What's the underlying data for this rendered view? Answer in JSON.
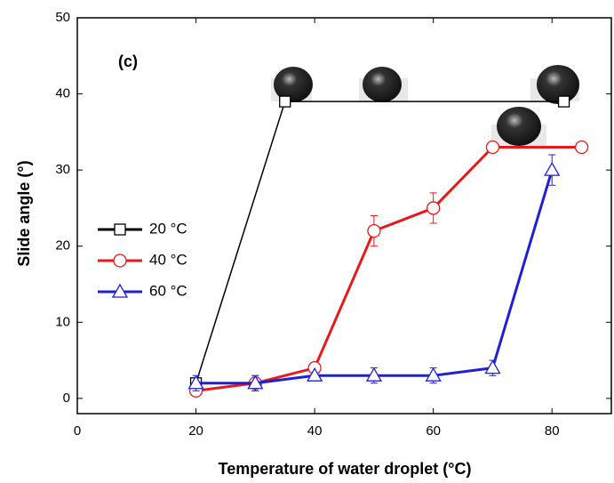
{
  "chart_data": {
    "type": "line",
    "xlabel": "Temperature of water droplet (°C)",
    "ylabel": "Slide angle (°)",
    "annotation": "(c)",
    "xlim": [
      0,
      90
    ],
    "ylim": [
      -2,
      50
    ],
    "xticks": [
      0,
      20,
      40,
      60,
      80
    ],
    "yticks": [
      0,
      10,
      20,
      30,
      40,
      50
    ],
    "series": [
      {
        "name": "20 °C",
        "color": "#000000",
        "marker": "square",
        "x": [
          20,
          35,
          82
        ],
        "values": [
          2,
          39,
          39
        ]
      },
      {
        "name": "40 °C",
        "color": "#e8191b",
        "marker": "circle",
        "x": [
          20,
          30,
          40,
          50,
          60,
          70,
          85
        ],
        "values": [
          1,
          2,
          4,
          22,
          25,
          33,
          33
        ],
        "errors": [
          0,
          1,
          0,
          2,
          2,
          0,
          0
        ]
      },
      {
        "name": "60 °C",
        "color": "#1f1fd6",
        "marker": "triangle",
        "x": [
          20,
          30,
          40,
          50,
          60,
          70,
          80
        ],
        "values": [
          2,
          2,
          3,
          3,
          3,
          4,
          30
        ],
        "errors": [
          1,
          1,
          0,
          1,
          1,
          1,
          2
        ]
      }
    ]
  }
}
